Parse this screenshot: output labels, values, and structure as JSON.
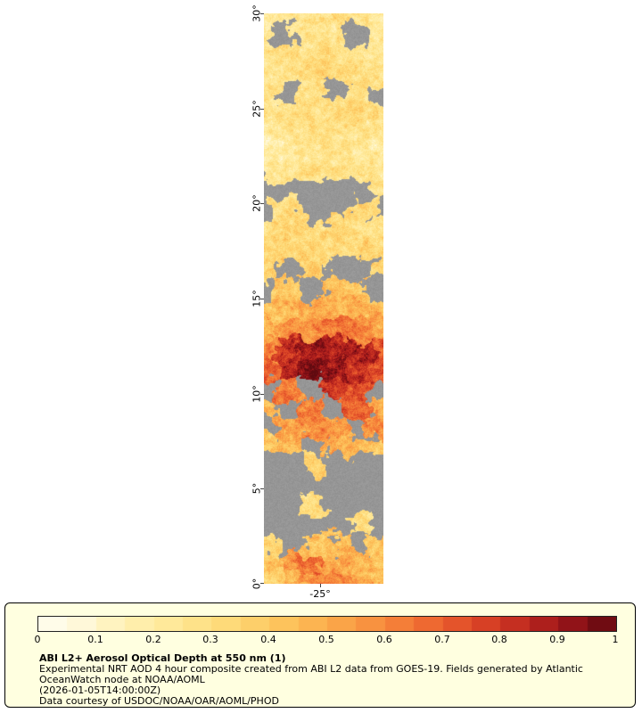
{
  "map": {
    "missing_color": "#969696",
    "y_axis": {
      "ticks": [
        "30°",
        "25°",
        "20°",
        "15°",
        "10°",
        "5°",
        "0°"
      ]
    },
    "x_axis": {
      "ticks": [
        "-25°"
      ]
    }
  },
  "colorbar": {
    "ticks": [
      "0",
      "0.1",
      "0.2",
      "0.3",
      "0.4",
      "0.5",
      "0.6",
      "0.7",
      "0.8",
      "0.9",
      "1"
    ],
    "stops": [
      [
        0.0,
        "#fffef2"
      ],
      [
        0.08,
        "#fff8d8"
      ],
      [
        0.15,
        "#fff1b4"
      ],
      [
        0.25,
        "#ffe792"
      ],
      [
        0.35,
        "#fed671"
      ],
      [
        0.45,
        "#fdbd56"
      ],
      [
        0.55,
        "#fa9c44"
      ],
      [
        0.65,
        "#f37435"
      ],
      [
        0.75,
        "#e04a28"
      ],
      [
        0.85,
        "#bc261f"
      ],
      [
        0.93,
        "#8f1218"
      ],
      [
        1.0,
        "#5f0a10"
      ]
    ]
  },
  "panel": {
    "background": "#ffffe0",
    "border": "#000000",
    "title": "ABI L2+ Aerosol Optical Depth at 550 nm (1)",
    "line1": "Experimental NRT AOD 4 hour composite created from ABI L2 data from GOES-19. Fields generated by Atlantic",
    "line2": "OceanWatch node at NOAA/AOML",
    "line3": "(2026-01-05T14:00:00Z)",
    "line4": "Data courtesy of USDOC/NOAA/OAR/AOML/PHOD"
  },
  "chart_data": {
    "type": "heatmap",
    "title": "ABI L2+ Aerosol Optical Depth at 550 nm (1)",
    "value_label": "Aerosol Optical Depth",
    "value_range": [
      0,
      1
    ],
    "lat_range": [
      0,
      30
    ],
    "lat_ticks": [
      "0°",
      "5°",
      "10°",
      "15°",
      "20°",
      "25°",
      "30°"
    ],
    "lon_tick": "-25°",
    "missing_value": null,
    "grid_note": "rows ordered top(lat 30) to bottom(lat 0), 1 deg per row; 6 longitude columns left to right; null = missing/gray",
    "grid": [
      [
        0.2,
        0.24,
        0.22,
        0.3,
        0.26,
        0.21
      ],
      [
        0.24,
        null,
        0.28,
        0.26,
        null,
        0.24
      ],
      [
        0.26,
        0.3,
        0.25,
        0.31,
        0.28,
        0.22
      ],
      [
        0.24,
        0.28,
        0.32,
        0.34,
        0.3,
        0.26
      ],
      [
        0.28,
        null,
        0.3,
        null,
        0.28,
        null
      ],
      [
        0.26,
        0.3,
        0.28,
        0.32,
        0.33,
        0.28
      ],
      [
        0.21,
        0.26,
        0.3,
        0.28,
        0.26,
        0.22
      ],
      [
        0.2,
        0.23,
        0.26,
        0.26,
        0.23,
        0.2
      ],
      [
        0.23,
        0.26,
        0.3,
        0.28,
        0.26,
        0.25
      ],
      [
        null,
        null,
        null,
        null,
        null,
        0.28
      ],
      [
        null,
        0.3,
        null,
        null,
        0.32,
        null
      ],
      [
        0.3,
        0.33,
        0.31,
        0.35,
        0.31,
        0.28
      ],
      [
        0.31,
        0.35,
        0.33,
        0.31,
        0.35,
        0.3
      ],
      [
        0.34,
        null,
        0.38,
        null,
        null,
        0.34
      ],
      [
        null,
        0.4,
        null,
        0.44,
        0.4,
        null
      ],
      [
        0.4,
        0.46,
        0.5,
        0.46,
        0.5,
        0.42
      ],
      [
        0.5,
        0.6,
        0.56,
        0.65,
        0.6,
        0.52
      ],
      [
        0.6,
        0.8,
        0.9,
        0.85,
        0.88,
        0.7
      ],
      [
        0.7,
        0.85,
        0.95,
        0.9,
        0.82,
        0.75
      ],
      [
        null,
        0.62,
        null,
        0.8,
        0.72,
        null
      ],
      [
        0.45,
        null,
        0.62,
        null,
        0.7,
        0.52
      ],
      [
        null,
        0.52,
        0.6,
        0.55,
        null,
        0.58
      ],
      [
        0.4,
        0.46,
        null,
        0.5,
        0.46,
        0.4
      ],
      [
        null,
        null,
        0.36,
        null,
        null,
        null
      ],
      [
        null,
        null,
        null,
        null,
        null,
        null
      ],
      [
        null,
        null,
        0.3,
        null,
        null,
        null
      ],
      [
        null,
        null,
        null,
        null,
        0.3,
        null
      ],
      [
        0.36,
        null,
        0.42,
        0.46,
        null,
        0.4
      ],
      [
        0.42,
        0.55,
        0.65,
        0.52,
        0.46,
        0.42
      ],
      [
        0.36,
        0.46,
        0.56,
        0.6,
        0.5,
        0.42
      ]
    ]
  }
}
